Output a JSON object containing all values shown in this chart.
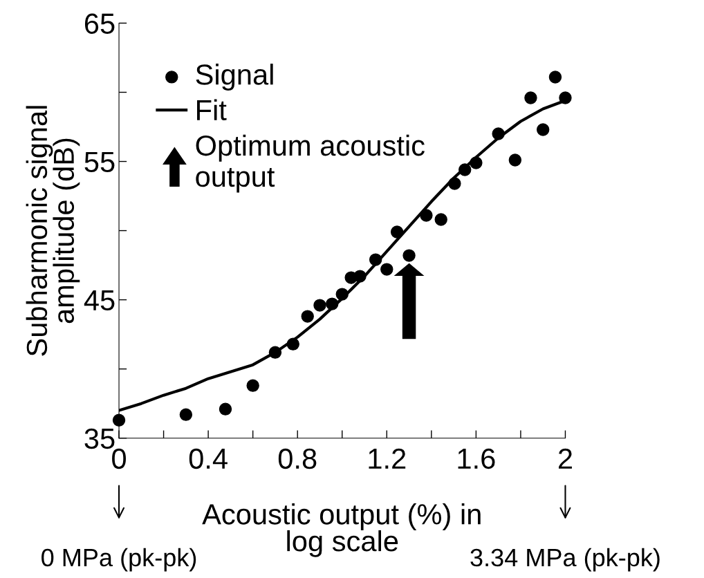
{
  "chart_data": {
    "type": "scatter",
    "xlabel": "Acoustic output (%) in\nlog scale",
    "ylabel": "Subharmonic signal\namplitude (dB)",
    "xlim": [
      0,
      2
    ],
    "ylim": [
      35,
      65
    ],
    "xticks": [
      0,
      {
        "value": 0.2,
        "label": null
      },
      0.4,
      {
        "value": 0.6,
        "label": null
      },
      0.8,
      {
        "value": 1.0,
        "label": null
      },
      1.2,
      {
        "value": 1.4,
        "label": null
      },
      1.6,
      {
        "value": 1.8,
        "label": null
      },
      2
    ],
    "yticks": [
      35,
      {
        "value": 40,
        "label": null
      },
      45,
      {
        "value": 50,
        "label": null
      },
      55,
      {
        "value": 60,
        "label": null
      },
      65
    ],
    "grid": false,
    "legend": "top left",
    "series": [
      {
        "name": "Signal",
        "marker": "circle",
        "color": "#000000",
        "x": [
          0.0,
          0.3,
          0.477,
          0.6,
          0.7,
          0.78,
          0.845,
          0.9,
          0.955,
          1.0,
          1.04,
          1.08,
          1.15,
          1.2,
          1.246,
          1.3,
          1.377,
          1.443,
          1.504,
          1.55,
          1.6,
          1.7,
          1.775,
          1.845,
          1.9,
          1.955,
          2.0
        ],
        "values": [
          36.3,
          36.7,
          37.1,
          38.8,
          41.2,
          41.8,
          43.8,
          44.6,
          44.7,
          45.4,
          46.6,
          46.7,
          47.9,
          47.2,
          49.9,
          48.2,
          51.1,
          50.8,
          53.4,
          54.4,
          54.9,
          57.0,
          55.1,
          59.6,
          57.3,
          61.1,
          59.6
        ]
      },
      {
        "name": "Fit",
        "type": "line",
        "marker": "none",
        "line_style": "solid",
        "color": "#000000",
        "x": [
          0,
          0.1,
          0.2,
          0.3,
          0.4,
          0.5,
          0.6,
          0.7,
          0.8,
          0.9,
          1.0,
          1.1,
          1.2,
          1.3,
          1.4,
          1.5,
          1.6,
          1.7,
          1.8,
          1.9,
          2.0
        ],
        "values": [
          37.0,
          37.5,
          38.1,
          38.6,
          39.3,
          39.8,
          40.3,
          41.2,
          42.3,
          43.6,
          45.1,
          46.7,
          48.5,
          50.3,
          52.1,
          53.8,
          55.3,
          56.7,
          57.9,
          58.8,
          59.4
        ]
      }
    ],
    "annotations": [
      "Optimum acoustic\noutput",
      "0 MPa (pk-pk)",
      "3.34 MPa (pk-pk)"
    ]
  }
}
